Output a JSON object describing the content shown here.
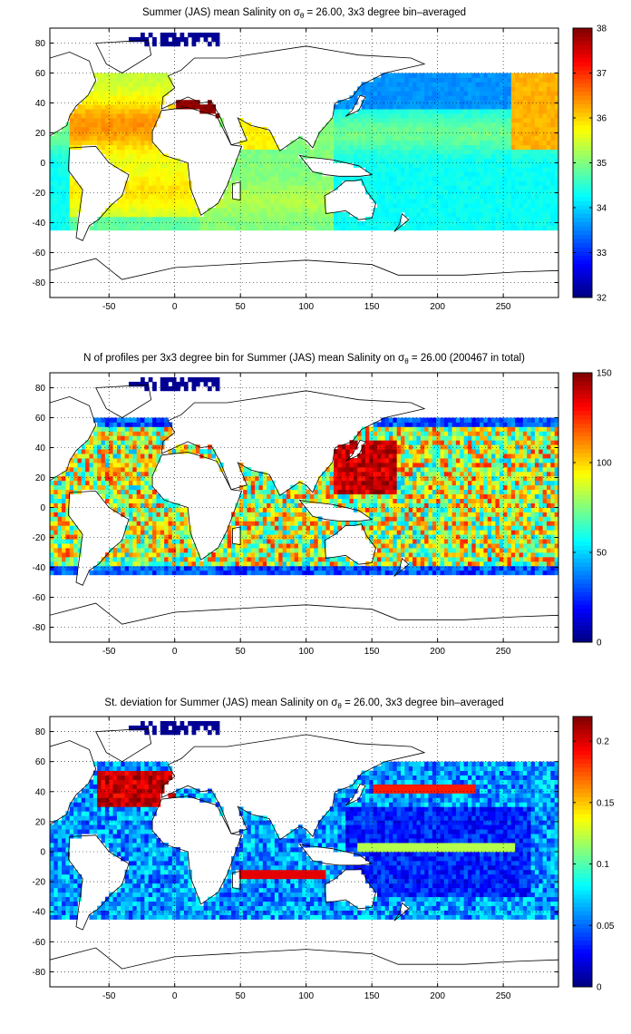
{
  "chart_data": [
    {
      "type": "heatmap",
      "title_main": "Summer (JAS) mean Salinity on ",
      "title_sigma": "σ",
      "title_sub": "θ",
      "title_rest": " = 26.00, 3x3 degree bin–averaged",
      "xlim": [
        -95,
        292
      ],
      "ylim": [
        -90,
        90
      ],
      "xticks": [
        -50,
        0,
        50,
        100,
        150,
        200,
        250
      ],
      "yticks": [
        -80,
        -60,
        -40,
        -20,
        0,
        20,
        40,
        60,
        80
      ],
      "grid": true,
      "colormap": "jet",
      "cbar_range": [
        32,
        38
      ],
      "cbar_ticks": [
        32,
        33,
        34,
        35,
        36,
        37,
        38
      ],
      "field": "salinity"
    },
    {
      "type": "heatmap",
      "title_main": "N of profiles per 3x3 degree bin for Summer (JAS) mean Salinity on ",
      "title_sigma": "σ",
      "title_sub": "θ",
      "title_rest": " = 26.00 (200467 in total)",
      "xlim": [
        -95,
        292
      ],
      "ylim": [
        -90,
        90
      ],
      "xticks": [
        -50,
        0,
        50,
        100,
        150,
        200,
        250
      ],
      "yticks": [
        -80,
        -60,
        -40,
        -20,
        0,
        20,
        40,
        60,
        80
      ],
      "grid": true,
      "colormap": "jet",
      "cbar_range": [
        0,
        150
      ],
      "cbar_ticks": [
        0,
        50,
        100,
        150
      ],
      "field": "count"
    },
    {
      "type": "heatmap",
      "title_main": "St. deviation for Summer (JAS) mean Salinity on ",
      "title_sigma": "σ",
      "title_sub": "θ",
      "title_rest": " = 26.00, 3x3 degree bin–averaged",
      "xlim": [
        -95,
        292
      ],
      "ylim": [
        -90,
        90
      ],
      "xticks": [
        -50,
        0,
        50,
        100,
        150,
        200,
        250
      ],
      "yticks": [
        -80,
        -60,
        -40,
        -20,
        0,
        20,
        40,
        60,
        80
      ],
      "grid": true,
      "colormap": "jet",
      "cbar_range": [
        0,
        0.22
      ],
      "cbar_ticks": [
        0,
        0.05,
        0.1,
        0.15,
        0.2
      ],
      "field": "stdev"
    }
  ]
}
